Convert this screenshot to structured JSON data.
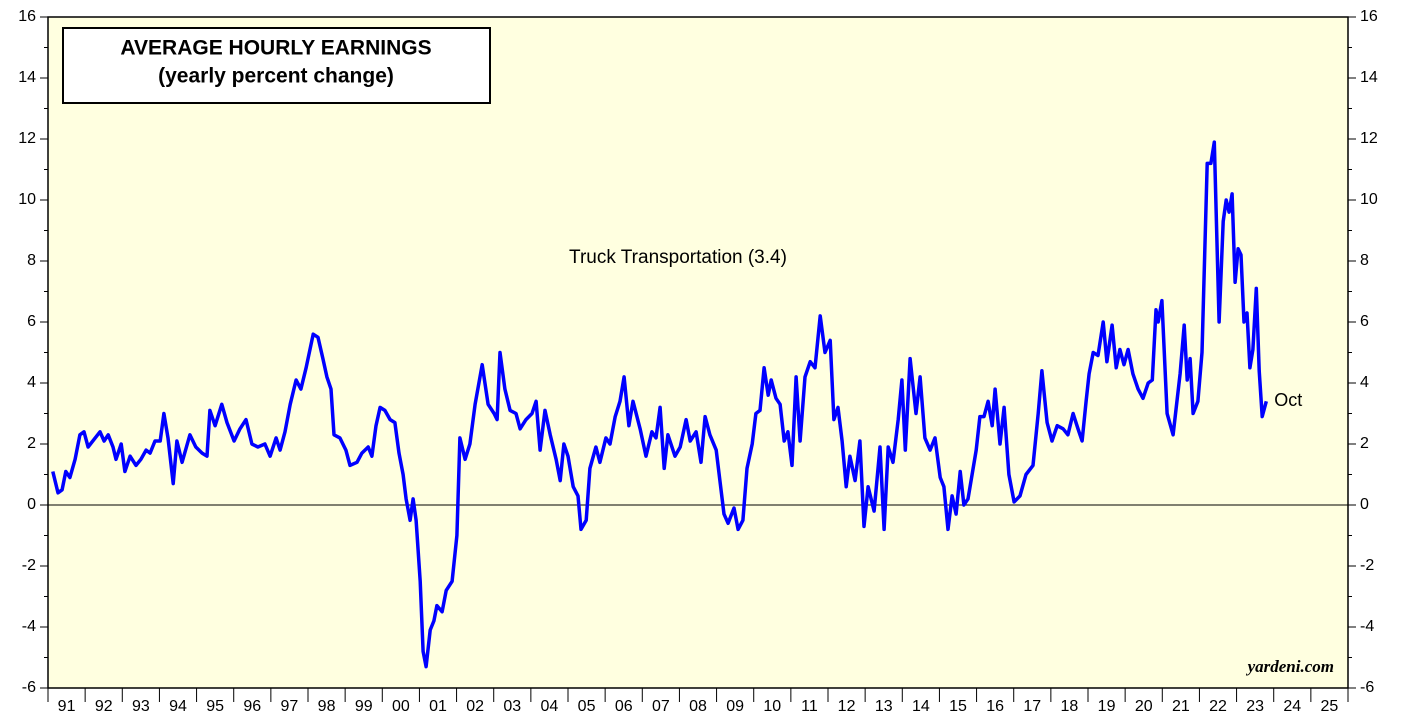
{
  "chart_data": {
    "type": "line",
    "title": "AVERAGE HOURLY EARNINGS",
    "subtitle": "(yearly percent change)",
    "annotations": {
      "end_label": "Oct",
      "source": "yardeni.com"
    },
    "xlim": [
      1991,
      2026
    ],
    "ylim": [
      -6,
      16
    ],
    "yticks": [
      -6,
      -4,
      -2,
      0,
      2,
      4,
      6,
      8,
      10,
      12,
      14,
      16
    ],
    "xticks": [
      {
        "value": 1991,
        "label": "91"
      },
      {
        "value": 1992,
        "label": "92"
      },
      {
        "value": 1993,
        "label": "93"
      },
      {
        "value": 1994,
        "label": "94"
      },
      {
        "value": 1995,
        "label": "95"
      },
      {
        "value": 1996,
        "label": "96"
      },
      {
        "value": 1997,
        "label": "97"
      },
      {
        "value": 1998,
        "label": "98"
      },
      {
        "value": 1999,
        "label": "99"
      },
      {
        "value": 2000,
        "label": "00"
      },
      {
        "value": 2001,
        "label": "01"
      },
      {
        "value": 2002,
        "label": "02"
      },
      {
        "value": 2003,
        "label": "03"
      },
      {
        "value": 2004,
        "label": "04"
      },
      {
        "value": 2005,
        "label": "05"
      },
      {
        "value": 2006,
        "label": "06"
      },
      {
        "value": 2007,
        "label": "07"
      },
      {
        "value": 2008,
        "label": "08"
      },
      {
        "value": 2009,
        "label": "09"
      },
      {
        "value": 2010,
        "label": "10"
      },
      {
        "value": 2011,
        "label": "11"
      },
      {
        "value": 2012,
        "label": "12"
      },
      {
        "value": 2013,
        "label": "13"
      },
      {
        "value": 2014,
        "label": "14"
      },
      {
        "value": 2015,
        "label": "15"
      },
      {
        "value": 2016,
        "label": "16"
      },
      {
        "value": 2017,
        "label": "17"
      },
      {
        "value": 2018,
        "label": "18"
      },
      {
        "value": 2019,
        "label": "19"
      },
      {
        "value": 2020,
        "label": "20"
      },
      {
        "value": 2021,
        "label": "21"
      },
      {
        "value": 2022,
        "label": "22"
      },
      {
        "value": 2023,
        "label": "23"
      },
      {
        "value": 2024,
        "label": "24"
      },
      {
        "value": 2025,
        "label": "25"
      }
    ],
    "x": [
      1991.13,
      1991.27,
      1991.38,
      1991.48,
      1991.59,
      1991.73,
      1991.86,
      1991.97,
      1992.08,
      1992.27,
      1992.4,
      1992.51,
      1992.62,
      1992.75,
      1992.83,
      1992.97,
      1993.07,
      1993.21,
      1993.37,
      1993.5,
      1993.64,
      1993.75,
      1993.88,
      1994.02,
      1994.12,
      1994.23,
      1994.37,
      1994.47,
      1994.61,
      1994.82,
      1994.98,
      1995.15,
      1995.28,
      1995.36,
      1995.5,
      1995.68,
      1995.82,
      1996.01,
      1996.17,
      1996.33,
      1996.49,
      1996.65,
      1996.84,
      1996.98,
      1997.14,
      1997.25,
      1997.38,
      1997.52,
      1997.68,
      1997.81,
      1997.95,
      1998.14,
      1998.27,
      1998.4,
      1998.51,
      1998.62,
      1998.7,
      1998.86,
      1999.02,
      1999.13,
      1999.32,
      1999.45,
      1999.62,
      1999.72,
      1999.83,
      1999.94,
      2000.07,
      2000.21,
      2000.34,
      2000.45,
      2000.56,
      2000.64,
      2000.75,
      2000.83,
      2000.91,
      2001.02,
      2001.1,
      2001.18,
      2001.29,
      2001.39,
      2001.47,
      2001.61,
      2001.72,
      2001.88,
      2002.01,
      2002.09,
      2002.23,
      2002.36,
      2002.5,
      2002.69,
      2002.85,
      2003.01,
      2003.09,
      2003.17,
      2003.3,
      2003.44,
      2003.6,
      2003.71,
      2003.87,
      2004.03,
      2004.14,
      2004.25,
      2004.38,
      2004.52,
      2004.68,
      2004.79,
      2004.89,
      2005.0,
      2005.14,
      2005.27,
      2005.35,
      2005.49,
      2005.59,
      2005.75,
      2005.86,
      2006.02,
      2006.13,
      2006.27,
      2006.4,
      2006.51,
      2006.64,
      2006.75,
      2006.94,
      2007.1,
      2007.26,
      2007.37,
      2007.48,
      2007.59,
      2007.69,
      2007.88,
      2008.02,
      2008.18,
      2008.29,
      2008.45,
      2008.58,
      2008.69,
      2008.82,
      2008.99,
      2009.09,
      2009.2,
      2009.31,
      2009.47,
      2009.58,
      2009.71,
      2009.82,
      2009.96,
      2010.06,
      2010.17,
      2010.28,
      2010.39,
      2010.47,
      2010.6,
      2010.71,
      2010.82,
      2010.92,
      2011.03,
      2011.14,
      2011.25,
      2011.38,
      2011.52,
      2011.65,
      2011.79,
      2011.92,
      2012.06,
      2012.16,
      2012.27,
      2012.38,
      2012.49,
      2012.59,
      2012.73,
      2012.86,
      2012.97,
      2013.08,
      2013.24,
      2013.4,
      2013.51,
      2013.62,
      2013.75,
      2013.89,
      2013.99,
      2014.08,
      2014.21,
      2014.37,
      2014.48,
      2014.61,
      2014.75,
      2014.88,
      2015.02,
      2015.12,
      2015.23,
      2015.34,
      2015.45,
      2015.56,
      2015.66,
      2015.77,
      2015.99,
      2016.09,
      2016.2,
      2016.31,
      2016.42,
      2016.5,
      2016.63,
      2016.74,
      2016.87,
      2017.01,
      2017.17,
      2017.33,
      2017.52,
      2017.66,
      2017.76,
      2017.9,
      2018.03,
      2018.17,
      2018.33,
      2018.46,
      2018.6,
      2018.73,
      2018.84,
      2018.95,
      2019.03,
      2019.14,
      2019.27,
      2019.41,
      2019.51,
      2019.65,
      2019.76,
      2019.86,
      2019.97,
      2020.08,
      2020.21,
      2020.35,
      2020.48,
      2020.62,
      2020.73,
      2020.83,
      2020.89,
      2020.99,
      2021.13,
      2021.29,
      2021.48,
      2021.59,
      2021.67,
      2021.75,
      2021.83,
      2021.96,
      2022.07,
      2022.21,
      2022.31,
      2022.4,
      2022.53,
      2022.64,
      2022.72,
      2022.8,
      2022.88,
      2022.96,
      2023.04,
      2023.12,
      2023.2,
      2023.28,
      2023.36,
      2023.44,
      2023.53,
      2023.61,
      2023.69,
      2023.8
    ],
    "series": [
      {
        "name": "Truck Transportation (3.4)",
        "color": "#0000ff",
        "values": [
          1.1,
          0.4,
          0.5,
          1.1,
          0.9,
          1.5,
          2.3,
          2.4,
          1.9,
          2.2,
          2.4,
          2.1,
          2.3,
          1.9,
          1.5,
          2.0,
          1.1,
          1.6,
          1.3,
          1.5,
          1.8,
          1.7,
          2.1,
          2.1,
          3.0,
          2.2,
          0.7,
          2.1,
          1.4,
          2.3,
          1.9,
          1.7,
          1.6,
          3.1,
          2.6,
          3.3,
          2.7,
          2.1,
          2.5,
          2.8,
          2.0,
          1.9,
          2.0,
          1.6,
          2.2,
          1.8,
          2.4,
          3.3,
          4.1,
          3.8,
          4.5,
          5.6,
          5.5,
          4.8,
          4.2,
          3.8,
          2.3,
          2.2,
          1.8,
          1.3,
          1.4,
          1.7,
          1.9,
          1.6,
          2.6,
          3.2,
          3.1,
          2.8,
          2.7,
          1.7,
          1.0,
          0.2,
          -0.5,
          0.2,
          -0.5,
          -2.5,
          -4.8,
          -5.3,
          -4.1,
          -3.8,
          -3.3,
          -3.5,
          -2.8,
          -2.5,
          -1.0,
          2.2,
          1.5,
          2.0,
          3.3,
          4.6,
          3.3,
          3.0,
          2.8,
          5.0,
          3.8,
          3.1,
          3.0,
          2.5,
          2.8,
          3.0,
          3.4,
          1.8,
          3.1,
          2.3,
          1.5,
          0.8,
          2.0,
          1.6,
          0.6,
          0.3,
          -0.8,
          -0.5,
          1.2,
          1.9,
          1.4,
          2.2,
          2.0,
          2.9,
          3.4,
          4.2,
          2.6,
          3.4,
          2.5,
          1.6,
          2.4,
          2.2,
          3.2,
          1.2,
          2.3,
          1.6,
          1.9,
          2.8,
          2.1,
          2.4,
          1.4,
          2.9,
          2.3,
          1.8,
          0.8,
          -0.3,
          -0.6,
          -0.1,
          -0.8,
          -0.5,
          1.2,
          2.0,
          3.0,
          3.1,
          4.5,
          3.6,
          4.1,
          3.5,
          3.3,
          2.1,
          2.4,
          1.3,
          4.2,
          2.1,
          4.2,
          4.7,
          4.5,
          6.2,
          5.0,
          5.4,
          2.8,
          3.2,
          2.1,
          0.6,
          1.6,
          0.8,
          2.1,
          -0.7,
          0.6,
          -0.2,
          1.9,
          -0.8,
          1.9,
          1.4,
          2.8,
          4.1,
          1.8,
          4.8,
          3.0,
          4.2,
          2.2,
          1.8,
          2.2,
          0.9,
          0.6,
          -0.8,
          0.3,
          -0.3,
          1.1,
          0.0,
          0.2,
          1.8,
          2.9,
          2.9,
          3.4,
          2.6,
          3.8,
          2.0,
          3.2,
          1.0,
          0.1,
          0.3,
          1.0,
          1.3,
          3.0,
          4.4,
          2.7,
          2.1,
          2.6,
          2.5,
          2.3,
          3.0,
          2.5,
          2.1,
          3.4,
          4.3,
          5.0,
          4.9,
          6.0,
          4.7,
          5.9,
          4.5,
          5.1,
          4.6,
          5.1,
          4.3,
          3.8,
          3.5,
          4.0,
          4.1,
          6.4,
          6.0,
          6.7,
          3.0,
          2.3,
          4.3,
          5.9,
          4.1,
          4.8,
          3.0,
          3.4,
          5.0,
          11.2,
          11.2,
          11.9,
          6.0,
          9.3,
          10.0,
          9.6,
          10.2,
          7.3,
          8.4,
          8.2,
          6.0,
          6.3,
          4.5,
          5.1,
          7.1,
          4.4,
          2.9,
          3.4
        ]
      }
    ],
    "background": "#ffffe0",
    "zero_line": true
  }
}
